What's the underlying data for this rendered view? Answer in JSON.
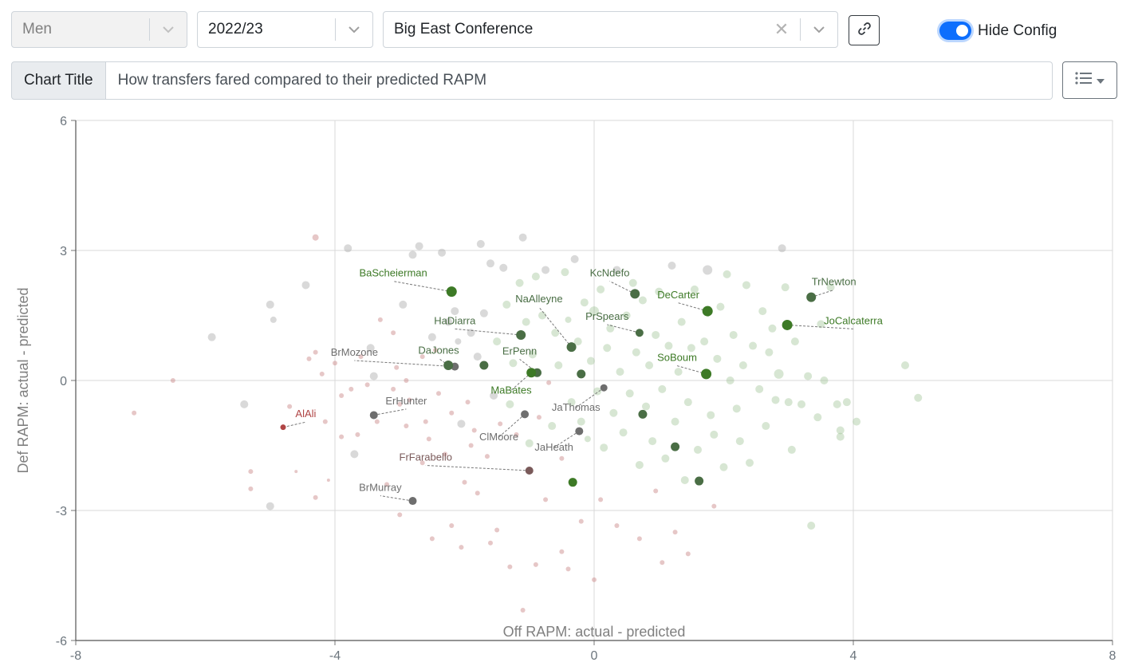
{
  "controls": {
    "gender": "Men",
    "season": "2022/23",
    "conference": "Big East Conference",
    "hide_config_label": "Hide Config",
    "hide_config_on": true
  },
  "title_bar": {
    "label": "Chart Title",
    "value": "How transfers fared compared to their predicted RAPM"
  },
  "icons": [
    "chevron-down-icon",
    "close-icon",
    "link-icon",
    "list-icon"
  ],
  "colors": {
    "positive": "#3d7a26",
    "neutral": "#6e6e6e",
    "negative": "#b04545",
    "accent": "#0d6efd"
  },
  "chart_data": {
    "type": "scatter",
    "xlabel": "Off RAPM: actual - predicted",
    "ylabel": "Def RAPM: actual - predicted",
    "xlim": [
      -8,
      8
    ],
    "ylim": [
      -6,
      6
    ],
    "xticks": [
      -8,
      -4,
      0,
      4,
      8
    ],
    "yticks": [
      -6,
      -3,
      0,
      3,
      6
    ],
    "grid": true,
    "highlighted": [
      {
        "name": "BaScheierman",
        "x": -2.2,
        "y": 2.05,
        "color": "#3d7a26",
        "lx": -3.1,
        "ly": 2.4,
        "size": 6.5
      },
      {
        "name": "KcNdefo",
        "x": 0.63,
        "y": 2.0,
        "color": "#4a6e45",
        "lx": 0.24,
        "ly": 2.4,
        "size": 6
      },
      {
        "name": "DeCarter",
        "x": 1.75,
        "y": 1.6,
        "color": "#3d7a26",
        "lx": 1.3,
        "ly": 1.9,
        "size": 6.5
      },
      {
        "name": "TrNewton",
        "x": 3.35,
        "y": 1.92,
        "color": "#4a6e45",
        "lx": 3.7,
        "ly": 2.2,
        "size": 6
      },
      {
        "name": "JoCalcaterra",
        "x": 2.98,
        "y": 1.28,
        "color": "#3d7a26",
        "lx": 4.0,
        "ly": 1.3,
        "size": 6.5
      },
      {
        "name": "NaAlleyne",
        "x": -0.35,
        "y": 0.77,
        "color": "#4a6e45",
        "lx": -0.85,
        "ly": 1.8,
        "size": 6
      },
      {
        "name": "HaDiarra",
        "x": -1.13,
        "y": 1.05,
        "color": "#4a6e45",
        "lx": -2.15,
        "ly": 1.3,
        "size": 6
      },
      {
        "name": "PrSpears",
        "x": 0.7,
        "y": 1.1,
        "color": "#4a6e45",
        "lx": 0.2,
        "ly": 1.4,
        "size": 5
      },
      {
        "name": "SoBoum",
        "x": 1.73,
        "y": 0.15,
        "color": "#3d7a26",
        "lx": 1.28,
        "ly": 0.45,
        "size": 6.5
      },
      {
        "name": "BrMozone",
        "x": -2.15,
        "y": 0.32,
        "color": "#6e6e6e",
        "lx": -3.7,
        "ly": 0.57,
        "size": 5
      },
      {
        "name": "DaJones",
        "x": -2.25,
        "y": 0.35,
        "color": "#4a6e45",
        "lx": -2.4,
        "ly": 0.62,
        "size": 6
      },
      {
        "name": "ErPenn",
        "x": -0.88,
        "y": 0.18,
        "color": "#4a6e45",
        "lx": -1.15,
        "ly": 0.6,
        "size": 5.5
      },
      {
        "name": "MaBates",
        "x": -0.97,
        "y": 0.18,
        "color": "#3d7a26",
        "lx": -1.28,
        "ly": -0.3,
        "size": 6
      },
      {
        "name": "JaThomas",
        "x": 0.15,
        "y": -0.17,
        "color": "#6e6e6e",
        "lx": -0.28,
        "ly": -0.7,
        "size": 4.5
      },
      {
        "name": "ClMoore",
        "x": -1.07,
        "y": -0.78,
        "color": "#6e6e6e",
        "lx": -1.47,
        "ly": -1.38,
        "size": 5
      },
      {
        "name": "JaHeath",
        "x": -0.23,
        "y": -1.17,
        "color": "#6e6e6e",
        "lx": -0.62,
        "ly": -1.62,
        "size": 5
      },
      {
        "name": "ErHunter",
        "x": -3.4,
        "y": -0.8,
        "color": "#6e6e6e",
        "lx": -2.9,
        "ly": -0.55,
        "size": 5
      },
      {
        "name": "AlAli",
        "x": -4.8,
        "y": -1.08,
        "color": "#b04545",
        "lx": -4.45,
        "ly": -0.85,
        "size": 3.5
      },
      {
        "name": "FrFarabello",
        "x": -1.0,
        "y": -2.08,
        "color": "#7a5a5a",
        "lx": -2.6,
        "ly": -1.85,
        "size": 5
      },
      {
        "name": "BrMurray",
        "x": -2.8,
        "y": -2.78,
        "color": "#6e6e6e",
        "lx": -3.3,
        "ly": -2.55,
        "size": 5
      }
    ],
    "highlighted_extra": [
      {
        "x": -1.7,
        "y": 0.35,
        "color": "#4a6e45",
        "size": 5.5
      },
      {
        "x": -0.2,
        "y": 0.15,
        "color": "#4a6e45",
        "size": 5.5
      },
      {
        "x": 0.75,
        "y": -0.78,
        "color": "#4a6e45",
        "size": 5.5
      },
      {
        "x": 1.25,
        "y": -1.53,
        "color": "#4a6e45",
        "size": 5.5
      },
      {
        "x": 1.62,
        "y": -2.32,
        "color": "#4a6e45",
        "size": 5.5
      },
      {
        "x": -0.33,
        "y": -2.35,
        "color": "#3d7a26",
        "size": 5.5
      }
    ],
    "background": [
      [
        -7.1,
        -0.75,
        "r",
        3
      ],
      [
        -6.5,
        0,
        "r",
        3
      ],
      [
        -5.9,
        1.0,
        "g",
        5
      ],
      [
        -5.4,
        -0.55,
        "g",
        5
      ],
      [
        -5.3,
        -2.1,
        "r",
        3
      ],
      [
        -5.3,
        -2.5,
        "r",
        3
      ],
      [
        -5.0,
        1.75,
        "g",
        5
      ],
      [
        -4.95,
        1.4,
        "g",
        4
      ],
      [
        -5.0,
        -2.9,
        "g",
        5
      ],
      [
        -4.7,
        -0.6,
        "r",
        3
      ],
      [
        -4.6,
        -2.1,
        "r",
        2
      ],
      [
        -4.45,
        2.2,
        "g",
        5
      ],
      [
        -4.3,
        3.3,
        "r",
        4
      ],
      [
        -4.3,
        -2.7,
        "r",
        3
      ],
      [
        -4.2,
        0.15,
        "r",
        3
      ],
      [
        -4.15,
        -0.95,
        "r",
        3
      ],
      [
        -4.0,
        0.4,
        "r",
        3
      ],
      [
        -3.9,
        -0.35,
        "r",
        3
      ],
      [
        -3.8,
        3.05,
        "g",
        5
      ],
      [
        -3.75,
        -0.2,
        "r",
        3
      ],
      [
        -3.7,
        -1.7,
        "g",
        5
      ],
      [
        -3.5,
        -0.1,
        "r",
        3
      ],
      [
        -3.45,
        0.75,
        "g",
        5
      ],
      [
        -3.4,
        0.1,
        "g",
        5
      ],
      [
        -3.35,
        -0.95,
        "r",
        3
      ],
      [
        -3.1,
        1.1,
        "r",
        3
      ],
      [
        -3.1,
        -0.2,
        "r",
        3
      ],
      [
        -3.05,
        0.3,
        "r",
        3
      ],
      [
        -2.95,
        1.75,
        "g",
        5
      ],
      [
        -2.85,
        -0.45,
        "r",
        3
      ],
      [
        -2.8,
        2.9,
        "g",
        5
      ],
      [
        -2.7,
        3.1,
        "g",
        5
      ],
      [
        -2.65,
        0.55,
        "r",
        3
      ],
      [
        -2.6,
        -0.95,
        "r",
        3
      ],
      [
        -2.55,
        -1.35,
        "r",
        3
      ],
      [
        -2.5,
        1.0,
        "g",
        5
      ],
      [
        -2.45,
        0.7,
        "r",
        3
      ],
      [
        -2.4,
        -0.3,
        "r",
        3
      ],
      [
        -2.35,
        2.95,
        "g",
        5
      ],
      [
        -2.3,
        -1.7,
        "r",
        3
      ],
      [
        -2.25,
        1.35,
        "g",
        5
      ],
      [
        -2.2,
        -0.75,
        "r",
        3
      ],
      [
        -2.15,
        1.6,
        "g",
        5
      ],
      [
        -2.1,
        0.9,
        "g",
        4
      ],
      [
        -2.05,
        -1.0,
        "g",
        5
      ],
      [
        -2.0,
        -2.35,
        "r",
        3
      ],
      [
        -1.95,
        -0.5,
        "r",
        3
      ],
      [
        -1.9,
        1.1,
        "g",
        5
      ],
      [
        -1.85,
        -1.15,
        "r",
        3
      ],
      [
        -1.8,
        0.55,
        "g",
        5
      ],
      [
        -1.75,
        3.15,
        "g",
        5
      ],
      [
        -1.7,
        1.55,
        "g",
        5
      ],
      [
        -1.65,
        -1.75,
        "r",
        3
      ],
      [
        -1.6,
        2.7,
        "g",
        5
      ],
      [
        -1.55,
        -0.35,
        "g",
        5
      ],
      [
        -1.5,
        0.9,
        "g",
        5
      ],
      [
        -1.45,
        -1.0,
        "r",
        3
      ],
      [
        -1.4,
        2.6,
        "g",
        5
      ],
      [
        -1.35,
        1.75,
        "g",
        5
      ],
      [
        -1.3,
        -0.55,
        "g",
        5
      ],
      [
        -1.25,
        0.4,
        "g",
        5
      ],
      [
        -1.2,
        -1.25,
        "r",
        3
      ],
      [
        -1.15,
        2.25,
        "g",
        5
      ],
      [
        -1.1,
        3.3,
        "g",
        5
      ],
      [
        -1.05,
        1.35,
        "g",
        5
      ],
      [
        -1.0,
        -1.45,
        "g",
        5
      ],
      [
        -0.95,
        0.6,
        "g",
        5
      ],
      [
        -0.9,
        2.4,
        "g",
        5
      ],
      [
        -0.85,
        -0.85,
        "r",
        3
      ],
      [
        -0.8,
        1.5,
        "g",
        5
      ],
      [
        -0.75,
        2.55,
        "g",
        5
      ],
      [
        -0.7,
        -0.05,
        "r",
        3
      ],
      [
        -0.65,
        -1.05,
        "g",
        5
      ],
      [
        -0.6,
        1.1,
        "g",
        5
      ],
      [
        -0.55,
        0.35,
        "g",
        5
      ],
      [
        -0.5,
        -1.8,
        "r",
        3
      ],
      [
        -0.45,
        2.5,
        "g",
        5
      ],
      [
        -0.4,
        1.4,
        "g",
        4
      ],
      [
        -0.35,
        -0.5,
        "g",
        5
      ],
      [
        -0.3,
        2.8,
        "g",
        5
      ],
      [
        -0.25,
        0.9,
        "g",
        5
      ],
      [
        -0.2,
        -0.95,
        "g",
        5
      ],
      [
        -0.15,
        1.8,
        "g",
        5
      ],
      [
        -0.1,
        -1.35,
        "g",
        4
      ],
      [
        -0.05,
        0.45,
        "g",
        5
      ],
      [
        0.0,
        1.6,
        "g",
        6
      ],
      [
        0.05,
        -0.25,
        "g",
        5
      ],
      [
        0.1,
        2.1,
        "g",
        5
      ],
      [
        0.15,
        -1.55,
        "g",
        5
      ],
      [
        0.2,
        0.75,
        "g",
        5
      ],
      [
        0.25,
        1.2,
        "g",
        5
      ],
      [
        0.3,
        -0.75,
        "g",
        5
      ],
      [
        0.35,
        2.55,
        "g",
        5
      ],
      [
        0.4,
        0.2,
        "g",
        5
      ],
      [
        0.45,
        -1.2,
        "g",
        5
      ],
      [
        0.5,
        1.5,
        "g",
        5
      ],
      [
        0.55,
        -0.3,
        "g",
        5
      ],
      [
        0.6,
        2.25,
        "g",
        5
      ],
      [
        0.65,
        0.65,
        "g",
        5
      ],
      [
        0.7,
        -1.95,
        "g",
        5
      ],
      [
        0.75,
        1.85,
        "g",
        5
      ],
      [
        0.8,
        -0.6,
        "g",
        5
      ],
      [
        0.85,
        0.35,
        "g",
        5
      ],
      [
        0.9,
        -1.4,
        "g",
        5
      ],
      [
        0.95,
        1.05,
        "g",
        5
      ],
      [
        1.0,
        2.05,
        "g",
        5
      ],
      [
        1.05,
        -0.2,
        "g",
        5
      ],
      [
        1.1,
        -1.8,
        "g",
        5
      ],
      [
        1.15,
        0.8,
        "g",
        5
      ],
      [
        1.2,
        2.65,
        "g",
        5
      ],
      [
        1.25,
        -0.95,
        "g",
        5
      ],
      [
        1.3,
        0.2,
        "g",
        5
      ],
      [
        1.35,
        1.35,
        "g",
        5
      ],
      [
        1.4,
        -2.3,
        "g",
        5
      ],
      [
        1.45,
        -0.5,
        "g",
        5
      ],
      [
        1.5,
        0.75,
        "g",
        5
      ],
      [
        1.55,
        2.1,
        "g",
        5
      ],
      [
        1.6,
        -1.6,
        "g",
        5
      ],
      [
        1.7,
        0.9,
        "g",
        5
      ],
      [
        1.75,
        2.55,
        "g",
        6
      ],
      [
        1.8,
        -0.8,
        "g",
        5
      ],
      [
        1.85,
        -1.25,
        "g",
        5
      ],
      [
        1.9,
        0.5,
        "g",
        5
      ],
      [
        1.95,
        1.7,
        "g",
        5
      ],
      [
        2.0,
        -2.0,
        "g",
        5
      ],
      [
        2.05,
        2.45,
        "g",
        5
      ],
      [
        2.1,
        0.0,
        "g",
        5
      ],
      [
        2.15,
        1.05,
        "g",
        5
      ],
      [
        2.2,
        -0.65,
        "g",
        5
      ],
      [
        2.25,
        -1.4,
        "g",
        5
      ],
      [
        2.3,
        0.35,
        "g",
        5
      ],
      [
        2.35,
        2.2,
        "g",
        5
      ],
      [
        2.4,
        -1.9,
        "g",
        5
      ],
      [
        2.45,
        0.8,
        "g",
        5
      ],
      [
        2.55,
        -0.2,
        "g",
        5
      ],
      [
        2.6,
        1.6,
        "g",
        5
      ],
      [
        2.65,
        -1.05,
        "g",
        5
      ],
      [
        2.7,
        0.65,
        "g",
        5
      ],
      [
        2.75,
        1.2,
        "g",
        5
      ],
      [
        2.8,
        -0.45,
        "g",
        5
      ],
      [
        2.85,
        0.15,
        "g",
        6
      ],
      [
        2.9,
        3.05,
        "g",
        5
      ],
      [
        2.95,
        2.15,
        "g",
        5
      ],
      [
        3.0,
        -0.5,
        "g",
        5
      ],
      [
        3.05,
        -1.6,
        "g",
        5
      ],
      [
        3.1,
        0.9,
        "g",
        5
      ],
      [
        3.2,
        -0.55,
        "g",
        5
      ],
      [
        3.3,
        0.1,
        "g",
        5
      ],
      [
        3.35,
        -3.35,
        "g",
        5
      ],
      [
        3.45,
        -0.85,
        "g",
        5
      ],
      [
        3.5,
        1.3,
        "g",
        5
      ],
      [
        3.55,
        0.0,
        "g",
        5
      ],
      [
        3.65,
        2.15,
        "g",
        5
      ],
      [
        3.75,
        -0.55,
        "g",
        5
      ],
      [
        3.8,
        -1.15,
        "g",
        5
      ],
      [
        3.8,
        -1.3,
        "g",
        5
      ],
      [
        3.9,
        -0.5,
        "g",
        5
      ],
      [
        4.05,
        -0.95,
        "g",
        5
      ],
      [
        4.8,
        0.35,
        "g",
        5
      ],
      [
        5.0,
        -0.4,
        "g",
        5
      ],
      [
        -1.3,
        -4.3,
        "r",
        3
      ],
      [
        -1.1,
        -5.3,
        "r",
        3
      ],
      [
        -0.9,
        -4.25,
        "r",
        3
      ],
      [
        -0.4,
        -4.35,
        "r",
        3
      ],
      [
        0.0,
        -4.6,
        "r",
        3
      ],
      [
        1.05,
        -4.2,
        "r",
        3
      ],
      [
        1.45,
        -4.0,
        "r",
        3
      ],
      [
        -2.5,
        -3.65,
        "r",
        3
      ],
      [
        -2.05,
        -3.85,
        "r",
        3
      ],
      [
        -1.6,
        -3.75,
        "r",
        3
      ],
      [
        -0.5,
        -3.95,
        "r",
        3
      ],
      [
        -0.2,
        -3.25,
        "r",
        3
      ],
      [
        0.35,
        -3.35,
        "r",
        3
      ],
      [
        0.7,
        -3.65,
        "r",
        3
      ],
      [
        1.25,
        -3.5,
        "r",
        3
      ],
      [
        1.85,
        -2.9,
        "r",
        3
      ],
      [
        -2.2,
        -3.35,
        "r",
        3
      ],
      [
        -3.0,
        -3.1,
        "r",
        3
      ],
      [
        -1.8,
        -2.6,
        "r",
        3
      ],
      [
        -0.75,
        -2.75,
        "r",
        3
      ],
      [
        -1.5,
        -3.45,
        "r",
        3
      ],
      [
        0.1,
        -2.75,
        "r",
        3
      ],
      [
        0.95,
        -2.55,
        "r",
        3
      ],
      [
        -2.65,
        -1.9,
        "r",
        3
      ],
      [
        -3.9,
        -1.3,
        "r",
        3
      ],
      [
        -4.1,
        -2.3,
        "r",
        2
      ],
      [
        -3.2,
        -2.4,
        "r",
        3
      ],
      [
        -1.9,
        -1.5,
        "r",
        3
      ],
      [
        -2.9,
        -1.05,
        "r",
        3
      ],
      [
        -3.6,
        0.55,
        "r",
        3
      ],
      [
        -4.4,
        0.5,
        "r",
        3
      ],
      [
        -3.3,
        1.4,
        "r",
        3
      ],
      [
        -2.9,
        0.0,
        "r",
        3
      ],
      [
        -4.3,
        0.65,
        "r",
        3
      ],
      [
        -3.65,
        -1.25,
        "r",
        3
      ],
      [
        -3.0,
        -0.55,
        "r",
        3
      ]
    ]
  }
}
